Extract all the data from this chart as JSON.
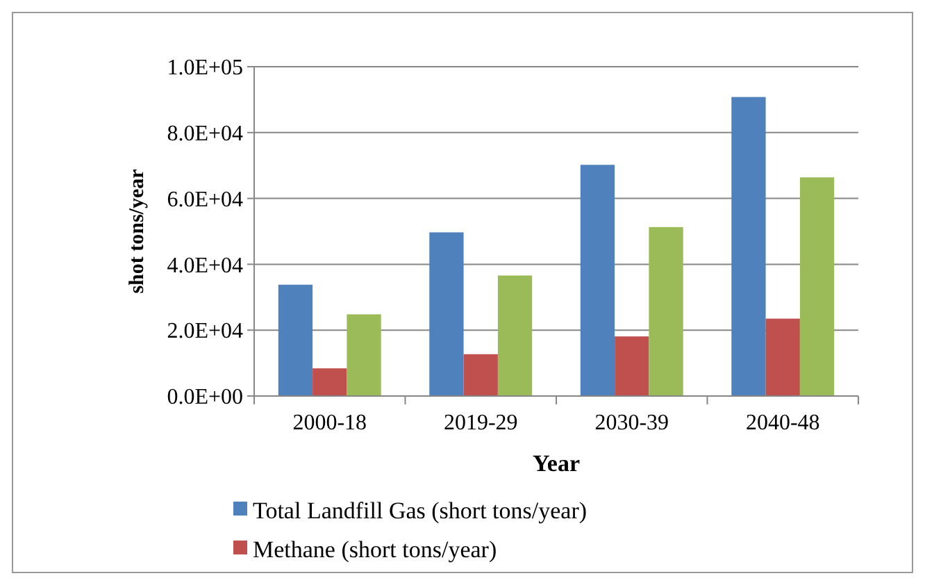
{
  "chart_data": {
    "type": "bar",
    "xlabel": "Year",
    "ylabel": "shot tons/year",
    "categories": [
      "2000-18",
      "2019-29",
      "2030-39",
      "2040-48"
    ],
    "series": [
      {
        "name": "Total Landfill Gas (short tons/year)",
        "color": "#4f81bd",
        "values": [
          33800,
          49700,
          70200,
          90800
        ]
      },
      {
        "name": "Methane (short tons/year)",
        "color": "#c0504d",
        "values": [
          8400,
          12700,
          18100,
          23500
        ]
      },
      {
        "color": "#9bbb59",
        "values": [
          24800,
          36600,
          51300,
          66400
        ]
      }
    ],
    "ylim": [
      0,
      100000
    ],
    "yticks": [
      {
        "value": 0,
        "label": "0.0E+00"
      },
      {
        "value": 20000,
        "label": "2.0E+04"
      },
      {
        "value": 40000,
        "label": "4.0E+04"
      },
      {
        "value": 60000,
        "label": "6.0E+04"
      },
      {
        "value": 80000,
        "label": "8.0E+04"
      },
      {
        "value": 100000,
        "label": "1.0E+05"
      }
    ],
    "grid": "y",
    "legend": "bottom"
  }
}
